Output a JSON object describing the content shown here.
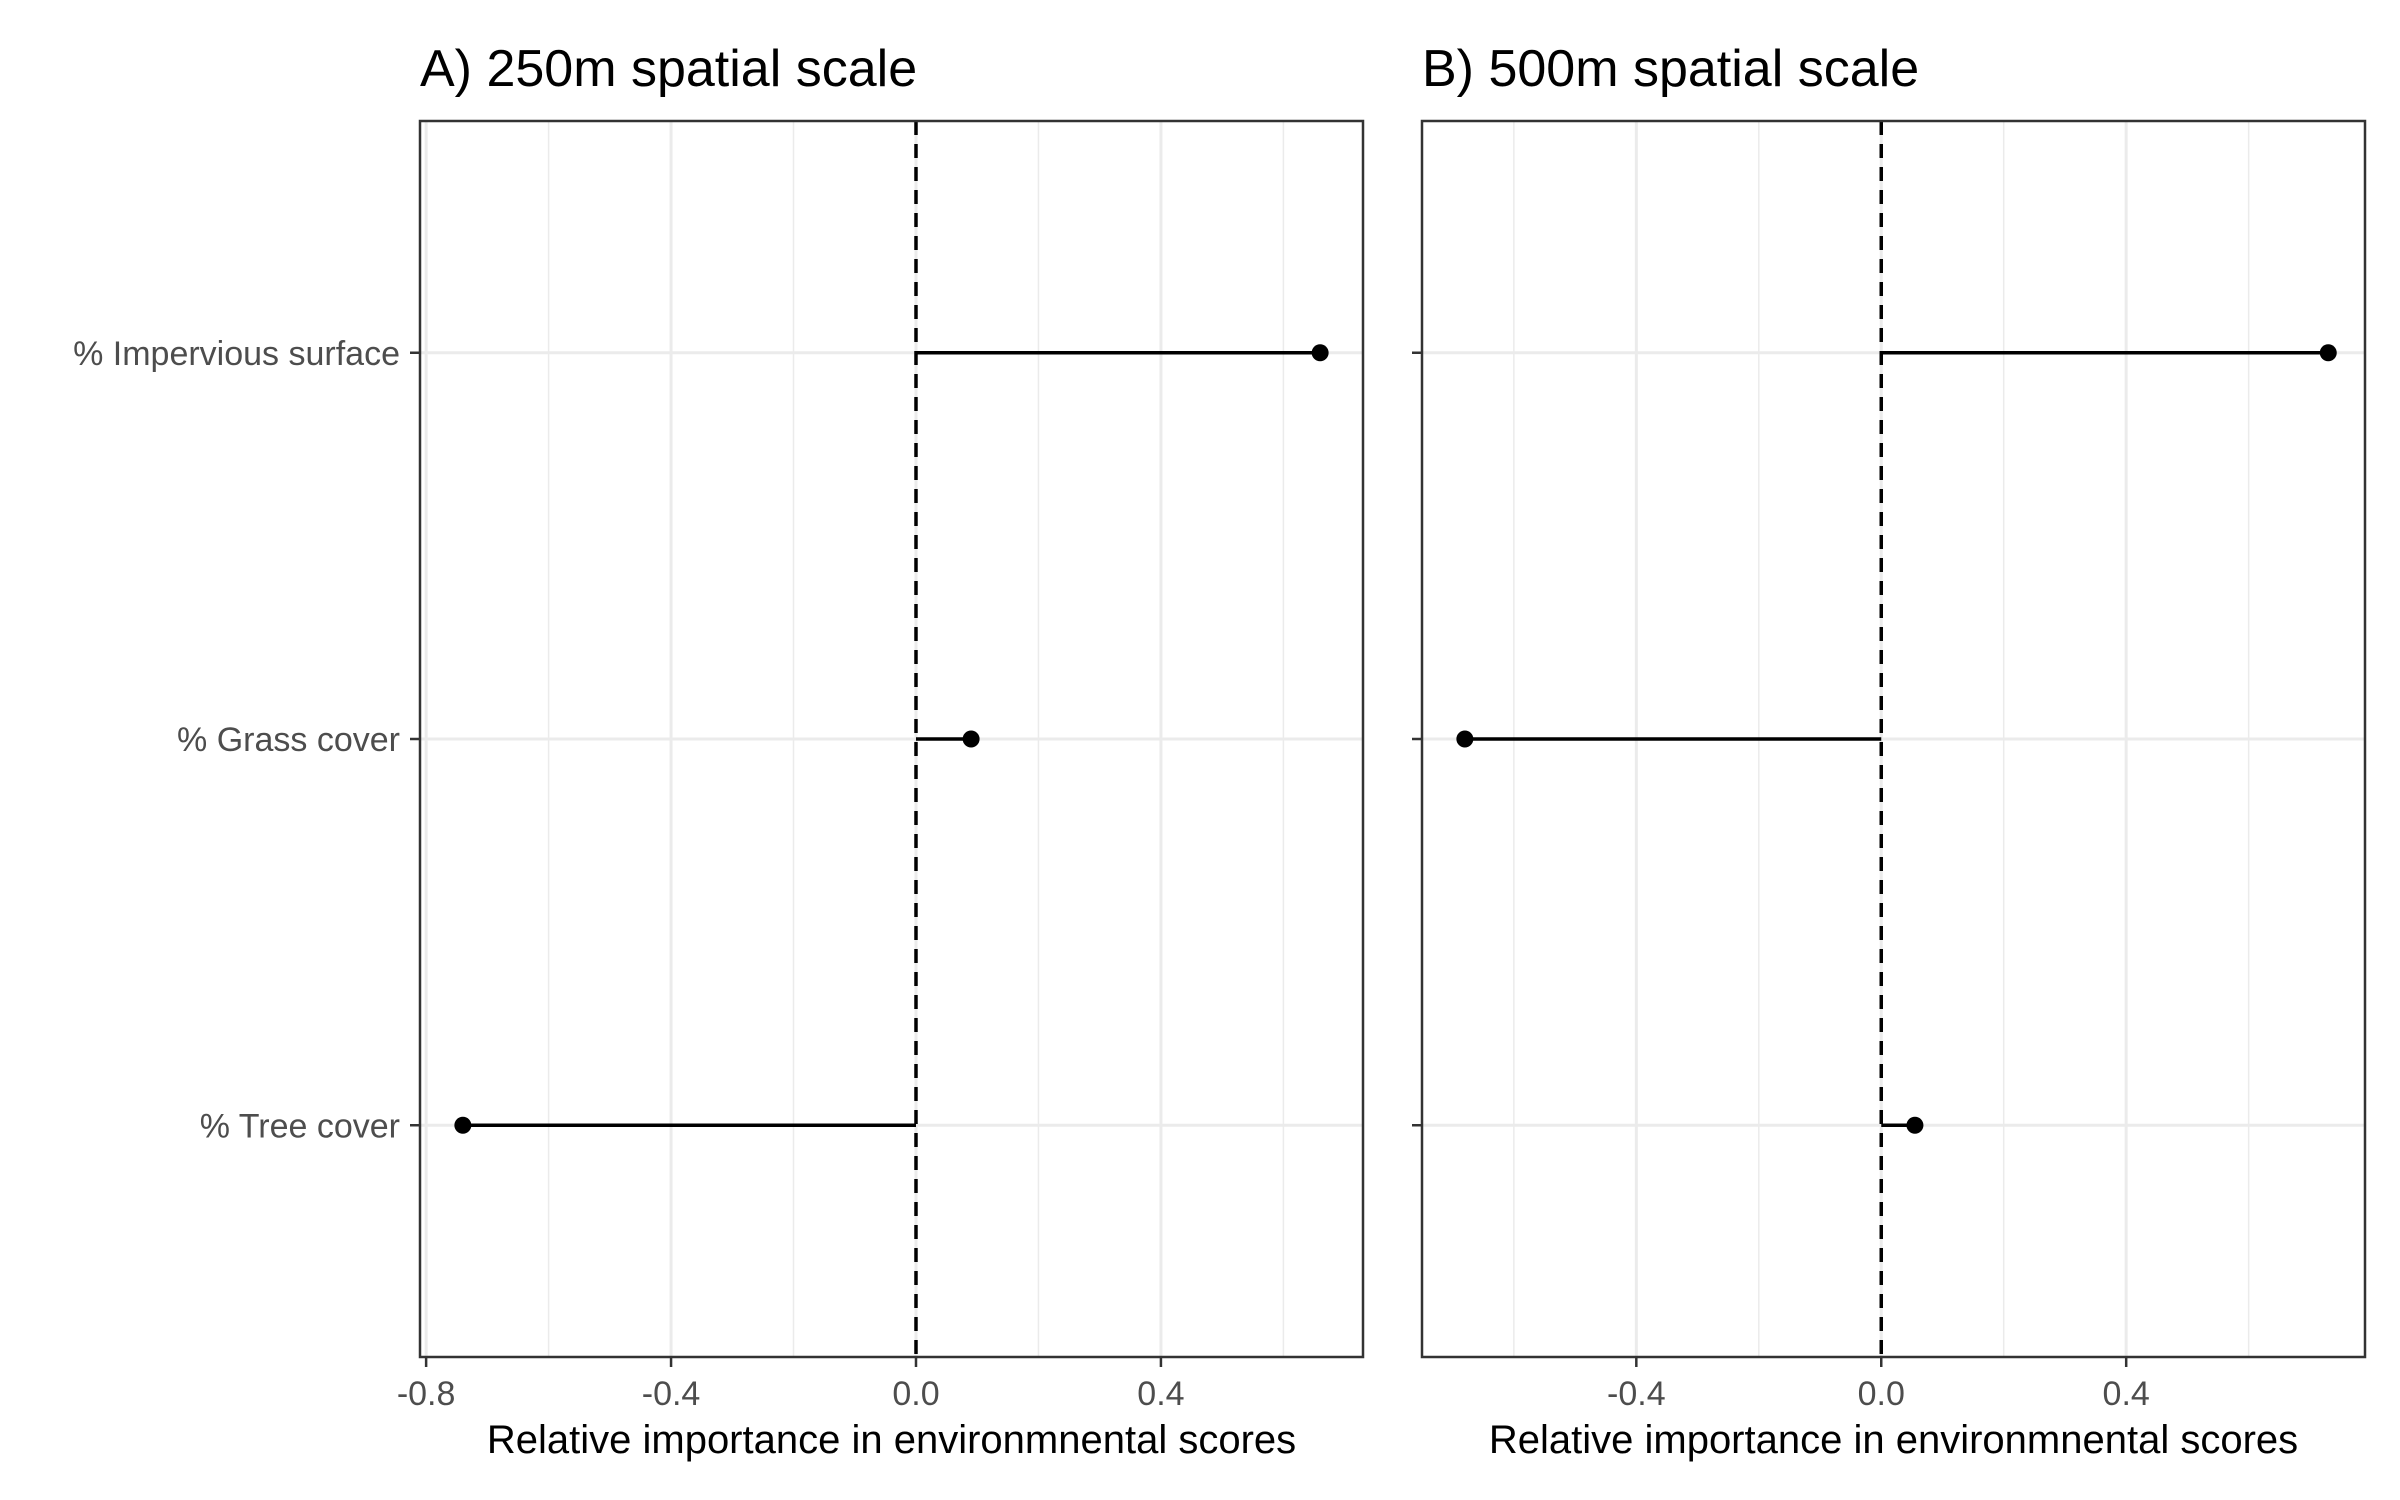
{
  "chart_data": [
    {
      "type": "lollipop",
      "title": "A) 250m spatial scale",
      "xlabel": "Relative importance in environmnental scores",
      "ylabel": "",
      "categories": [
        "% Impervious surface",
        "% Grass cover",
        "% Tree cover"
      ],
      "values": [
        0.66,
        0.09,
        -0.74
      ],
      "xlim": [
        -0.81,
        0.73
      ],
      "xticks": [
        -0.8,
        -0.4,
        0.0,
        0.4
      ],
      "xtick_labels": [
        "-0.8",
        "-0.4",
        "0.0",
        "0.4"
      ],
      "reference_line": 0,
      "grid": true,
      "show_category_labels": true
    },
    {
      "type": "lollipop",
      "title": "B) 500m spatial scale",
      "xlabel": "Relative importance in environmnental scores",
      "ylabel": "",
      "categories": [
        "% Impervious surface",
        "% Grass cover",
        "% Tree cover"
      ],
      "values": [
        0.73,
        -0.68,
        0.055
      ],
      "xlim": [
        -0.75,
        0.79
      ],
      "xticks": [
        -0.4,
        0.0,
        0.4
      ],
      "xtick_labels": [
        "-0.4",
        "0.0",
        "0.4"
      ],
      "reference_line": 0,
      "grid": true,
      "show_category_labels": false
    }
  ],
  "colors": {
    "mark": "#000000",
    "grid": "#ebebeb",
    "text": "#4d4d4d",
    "frame": "#333333"
  }
}
